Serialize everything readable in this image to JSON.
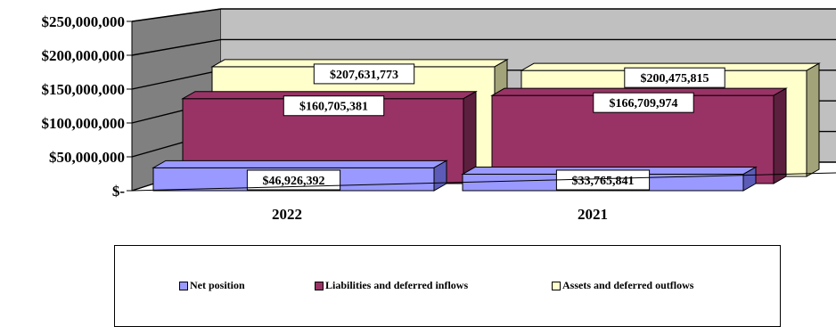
{
  "chart_data": {
    "type": "bar",
    "categories": [
      "2022",
      "2021"
    ],
    "series": [
      {
        "name": "Net position",
        "values": [
          46926392,
          33765841
        ],
        "labels": [
          "$46,926,392",
          "$33,765,841"
        ],
        "color": "#9999FF",
        "side": "#5C5CB8"
      },
      {
        "name": "Liabilities and deferred inflows",
        "values": [
          160705381,
          166709974
        ],
        "labels": [
          "$160,705,381",
          "$166,709,974"
        ],
        "color": "#993366",
        "side": "#5C1F3D"
      },
      {
        "name": "Assets and deferred outflows",
        "values": [
          207631773,
          200475815
        ],
        "labels": [
          "$207,631,773",
          "$200,475,815"
        ],
        "color": "#FFFFCC",
        "side": "#A3A37A"
      }
    ],
    "yticks": [
      "$-",
      "$50,000,000",
      "$100,000,000",
      "$150,000,000",
      "$200,000,000",
      "$250,000,000"
    ],
    "ylim": [
      0,
      250000000
    ],
    "legend_position": "bottom",
    "grid": true
  }
}
